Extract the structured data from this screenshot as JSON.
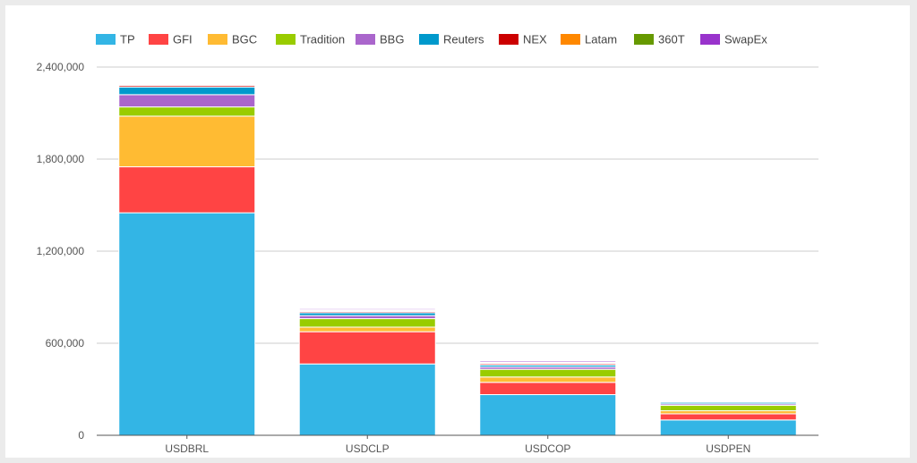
{
  "chart_data": {
    "type": "bar",
    "stacked": true,
    "categories": [
      "USDBRL",
      "USDCLP",
      "USDCOP",
      "USDPEN"
    ],
    "ylim": [
      0,
      2400000
    ],
    "yticks": [
      0,
      600000,
      1200000,
      1800000,
      2400000
    ],
    "ytick_labels": [
      "0",
      "600,000",
      "1,200,000",
      "1,800,000",
      "2,400,000"
    ],
    "grid": true,
    "legend_position": "top-left",
    "series": [
      {
        "name": "TP",
        "color": "#33b5e5",
        "values": [
          1450000,
          465000,
          265000,
          100000
        ]
      },
      {
        "name": "GFI",
        "color": "#ff4444",
        "values": [
          300000,
          210000,
          80000,
          40000
        ]
      },
      {
        "name": "BGC",
        "color": "#ffbb33",
        "values": [
          330000,
          30000,
          35000,
          20000
        ]
      },
      {
        "name": "Tradition",
        "color": "#99cc00",
        "values": [
          60000,
          55000,
          50000,
          35000
        ]
      },
      {
        "name": "BBG",
        "color": "#aa66cc",
        "values": [
          80000,
          20000,
          15000,
          10000
        ]
      },
      {
        "name": "Reuters",
        "color": "#0099cc",
        "values": [
          50000,
          18000,
          13000,
          10000
        ]
      },
      {
        "name": "NEX",
        "color": "#cc0000",
        "values": [
          10000,
          8000,
          8000,
          5000
        ]
      },
      {
        "name": "Latam",
        "color": "#ff8800",
        "values": [
          5000,
          6000,
          5000,
          3000
        ]
      },
      {
        "name": "360T",
        "color": "#669900",
        "values": [
          5000,
          6000,
          5000,
          3000
        ]
      },
      {
        "name": "SwapEx",
        "color": "#9933cc",
        "values": [
          5000,
          7000,
          8000,
          4000
        ]
      }
    ]
  }
}
